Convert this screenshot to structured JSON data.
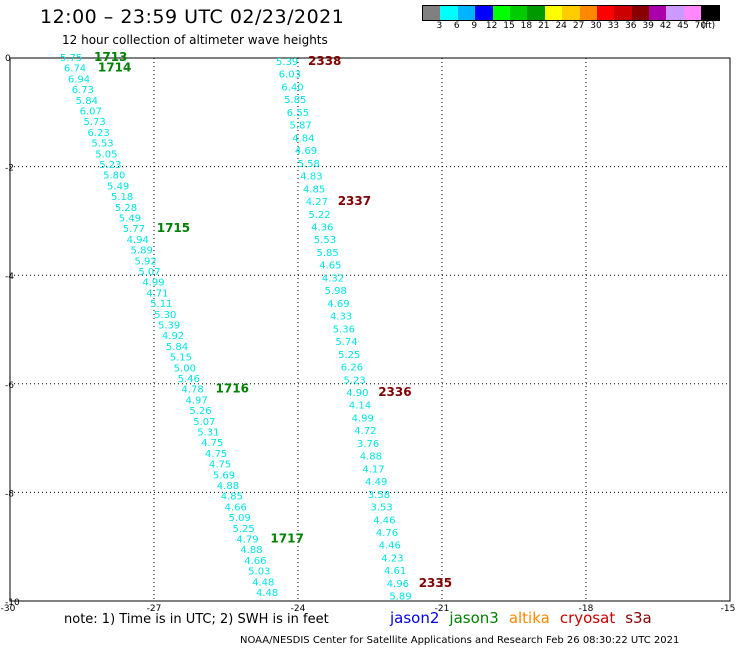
{
  "header": {
    "title": "12:00 – 23:59 UTC 02/23/2021",
    "subtitle": "12 hour collection of altimeter wave heights"
  },
  "legend": {
    "colors": [
      "#808080",
      "#00ffff",
      "#00b4ff",
      "#0000ff",
      "#00ff00",
      "#00cc00",
      "#009900",
      "#ffff00",
      "#ffcc00",
      "#ff8800",
      "#ff0000",
      "#cc0000",
      "#880000",
      "#aa00aa",
      "#cc99ff",
      "#ff88ff",
      "#000000"
    ],
    "labels": [
      "3",
      "6",
      "9",
      "12",
      "15",
      "18",
      "21",
      "24",
      "27",
      "30",
      "33",
      "36",
      "39",
      "42",
      "45",
      "70",
      "(ft)"
    ]
  },
  "axes": {
    "x_ticks": [
      "-30",
      "-27",
      "-24",
      "-21",
      "-18",
      "-15"
    ],
    "y_ticks": [
      "0",
      "-2",
      "-4",
      "-6",
      "-8",
      "-10"
    ]
  },
  "track1": {
    "heights": [
      "5.75",
      "6.74",
      "6.94",
      "6.73",
      "5.84",
      "6.07",
      "5.73",
      "6.23",
      "5.53",
      "5.05",
      "5.23",
      "5.80",
      "5.49",
      "5.18",
      "5.28",
      "5.49",
      "5.77",
      "4.94",
      "5.89",
      "5.92",
      "5.07",
      "4.99",
      "4.71",
      "5.11",
      "5.30",
      "5.39",
      "4.92",
      "5.84",
      "5.15",
      "5.00",
      "5.46",
      "4.78",
      "4.97",
      "5.26",
      "5.07",
      "5.31",
      "4.75",
      "4.75",
      "4.75",
      "5.69",
      "4.88",
      "4.85",
      "4.66",
      "5.09",
      "5.25",
      "4.79",
      "4.88",
      "4.66",
      "5.03",
      "4.48",
      "4.48"
    ],
    "times": [
      {
        "index": 0,
        "label": "1713"
      },
      {
        "index": 1,
        "label": "1714"
      },
      {
        "index": 16,
        "label": "1715"
      },
      {
        "index": 31,
        "label": "1716"
      },
      {
        "index": 45,
        "label": "1717"
      }
    ],
    "time_color": "#008000"
  },
  "track2": {
    "heights": [
      "5.39",
      "6.03",
      "6.40",
      "5.85",
      "6.55",
      "5.87",
      "4.84",
      "4.69",
      "5.58",
      "4.83",
      "4.85",
      "4.27",
      "5.22",
      "4.36",
      "5.53",
      "5.85",
      "4.65",
      "4.32",
      "5.98",
      "4.69",
      "4.33",
      "5.36",
      "5.74",
      "5.25",
      "6.26",
      "5.23",
      "4.90",
      "4.14",
      "4.99",
      "4.72",
      "3.76",
      "4.88",
      "4.17",
      "4.49",
      "3.58",
      "3.53",
      "4.46",
      "4.76",
      "4.46",
      "4.23",
      "4.61",
      "4.96",
      "5.89"
    ],
    "times": [
      {
        "index": 0,
        "label": "2338"
      },
      {
        "index": 11,
        "label": "2337"
      },
      {
        "index": 26,
        "label": "2336"
      },
      {
        "index": 41,
        "label": "2335"
      }
    ],
    "time_color": "#800000"
  },
  "footer": {
    "note": "note:  1) Time is in UTC;  2) SWH is in feet",
    "satellites": [
      {
        "name": "jason2",
        "color": "#0000ee"
      },
      {
        "name": "jason3",
        "color": "#008000"
      },
      {
        "name": "altika",
        "color": "#ff8800"
      },
      {
        "name": "cryosat",
        "color": "#cc0000"
      },
      {
        "name": "s3a",
        "color": "#880000"
      }
    ],
    "credit": "NOAA/NESDIS Center for Satellite Applications and Research    Feb 26 08:30:22 UTC 2021"
  }
}
